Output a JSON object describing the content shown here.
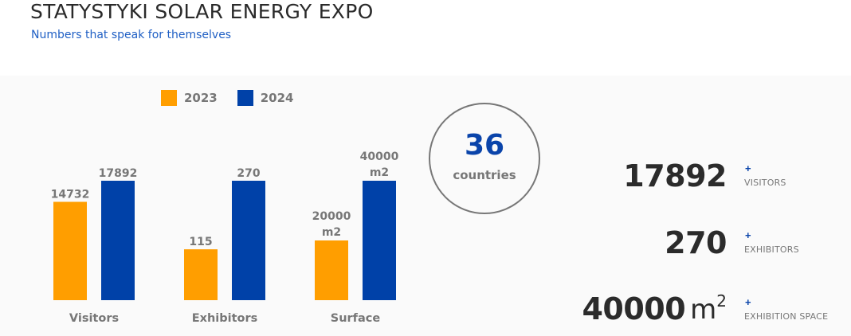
{
  "header": {
    "title": "STATYSTYKI SOLAR ENERGY EXPO",
    "subtitle": "Numbers that speak for themselves"
  },
  "colors": {
    "series_2023": "#ff9e00",
    "series_2024": "#0041a8",
    "accent": "#0a44aa",
    "muted_text": "#777777",
    "dark_text": "#2b2b2b",
    "panel_bg": "#fafafa"
  },
  "chart_data": {
    "type": "bar",
    "title": "",
    "xlabel": "",
    "ylabel": "",
    "categories": [
      "Visitors",
      "Exhibitors",
      "Surface"
    ],
    "series": [
      {
        "name": "2023",
        "values": [
          14732,
          115,
          20000
        ],
        "labels": [
          "14732",
          "115",
          "20000 m2"
        ]
      },
      {
        "name": "2024",
        "values": [
          17892,
          270,
          40000
        ],
        "labels": [
          "17892",
          "270",
          "40000 m2"
        ]
      }
    ],
    "normalization": "each category scaled to its 2024 value",
    "legend": {
      "position": "top",
      "entries": [
        "2023",
        "2024"
      ]
    },
    "grid": false
  },
  "countries": {
    "value": "36",
    "label": "countries"
  },
  "stats": [
    {
      "value": "17892",
      "unit": "",
      "plus": "+",
      "caption": "VISITORS"
    },
    {
      "value": "270",
      "unit": "",
      "plus": "+",
      "caption": "EXHIBITORS"
    },
    {
      "value": "40000",
      "unit": "m",
      "unit_sup": "2",
      "plus": "+",
      "caption": "EXHIBITION SPACE"
    }
  ]
}
